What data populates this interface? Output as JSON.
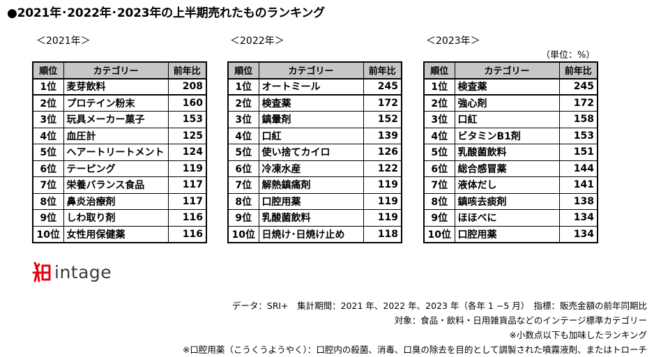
{
  "title": "●2021年･2022年･2023年の上半期売れたものランキング",
  "unit": "（単位：%）",
  "headers": {
    "rank": "順位",
    "category": "カテゴリー",
    "ratio": "前年比"
  },
  "tables": [
    {
      "label": "＜2021年＞",
      "rows": [
        {
          "rank": "1位",
          "category": "麦芽飲料",
          "ratio": "208"
        },
        {
          "rank": "2位",
          "category": "プロテイン粉末",
          "ratio": "160"
        },
        {
          "rank": "3位",
          "category": "玩具メーカー菓子",
          "ratio": "153"
        },
        {
          "rank": "4位",
          "category": "血圧計",
          "ratio": "125"
        },
        {
          "rank": "5位",
          "category": "ヘアートリートメント",
          "ratio": "124"
        },
        {
          "rank": "6位",
          "category": "テーピング",
          "ratio": "119"
        },
        {
          "rank": "7位",
          "category": "栄養バランス食品",
          "ratio": "117"
        },
        {
          "rank": "8位",
          "category": "鼻炎治療剤",
          "ratio": "117"
        },
        {
          "rank": "9位",
          "category": "しわ取り剤",
          "ratio": "116"
        },
        {
          "rank": "10位",
          "category": "女性用保健薬",
          "ratio": "116"
        }
      ]
    },
    {
      "label": "＜2022年＞",
      "rows": [
        {
          "rank": "1位",
          "category": "オートミール",
          "ratio": "245"
        },
        {
          "rank": "2位",
          "category": "検査薬",
          "ratio": "172"
        },
        {
          "rank": "3位",
          "category": "鎮暈剤",
          "ratio": "152"
        },
        {
          "rank": "4位",
          "category": "口紅",
          "ratio": "139"
        },
        {
          "rank": "5位",
          "category": "使い捨てカイロ",
          "ratio": "126"
        },
        {
          "rank": "6位",
          "category": "冷凍水産",
          "ratio": "122"
        },
        {
          "rank": "7位",
          "category": "解熱鎮痛剤",
          "ratio": "119"
        },
        {
          "rank": "8位",
          "category": "口腔用薬",
          "ratio": "119"
        },
        {
          "rank": "9位",
          "category": "乳酸菌飲料",
          "ratio": "119"
        },
        {
          "rank": "10位",
          "category": "日焼け･日焼け止め",
          "ratio": "118"
        }
      ]
    },
    {
      "label": "＜2023年＞",
      "rows": [
        {
          "rank": "1位",
          "category": "検査薬",
          "ratio": "245"
        },
        {
          "rank": "2位",
          "category": "強心剤",
          "ratio": "172"
        },
        {
          "rank": "3位",
          "category": "口紅",
          "ratio": "158"
        },
        {
          "rank": "4位",
          "category": "ビタミンB1剤",
          "ratio": "153"
        },
        {
          "rank": "5位",
          "category": "乳酸菌飲料",
          "ratio": "151"
        },
        {
          "rank": "6位",
          "category": "総合感冒薬",
          "ratio": "144"
        },
        {
          "rank": "7位",
          "category": "液体だし",
          "ratio": "141"
        },
        {
          "rank": "8位",
          "category": "鎮咳去痰剤",
          "ratio": "138"
        },
        {
          "rank": "9位",
          "category": "ほほべに",
          "ratio": "134"
        },
        {
          "rank": "10位",
          "category": "口腔用薬",
          "ratio": "134"
        }
      ]
    }
  ],
  "logo": {
    "text": "intage",
    "mark_color": "#e60012",
    "text_color": "#3a3a3a"
  },
  "notes": [
    "データ：SRI+　集計期間：2021 年、2022 年、2023 年（各年 1 −5 月）　指標：販売金額の前年同期比",
    "対象：食品・飲料・日用雑貨品などのインテージ標準カテゴリー",
    "※小数点以下も加味したランキング",
    "※口腔用薬（こうくうようやく）：口腔内の殺菌、消毒、口臭の除去を目的として調製された噴霧液剤、またはトローチ"
  ],
  "colors": {
    "header_bg": "#c6c6c6",
    "border": "#000000"
  }
}
